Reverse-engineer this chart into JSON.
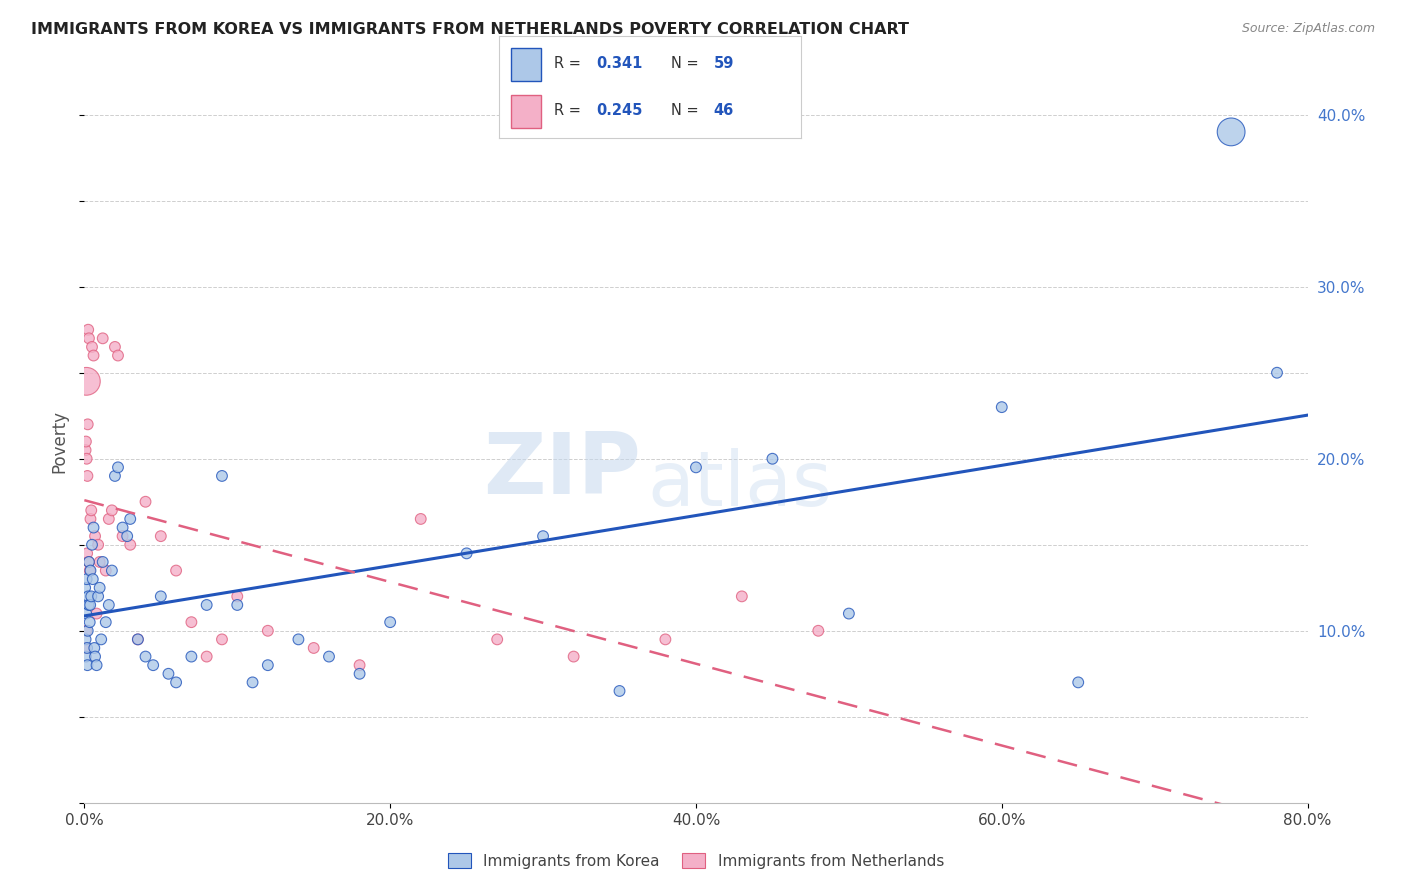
{
  "title": "IMMIGRANTS FROM KOREA VS IMMIGRANTS FROM NETHERLANDS POVERTY CORRELATION CHART",
  "source": "Source: ZipAtlas.com",
  "ylabel": "Poverty",
  "xlabel_ticks": [
    "0.0%",
    "20.0%",
    "40.0%",
    "60.0%",
    "80.0%"
  ],
  "xlabel_vals": [
    0,
    20,
    40,
    60,
    80
  ],
  "ylabel_ticks": [
    "10.0%",
    "20.0%",
    "30.0%",
    "40.0%"
  ],
  "ylabel_vals": [
    10,
    20,
    30,
    40
  ],
  "korea_R": 0.341,
  "korea_N": 59,
  "netherlands_R": 0.245,
  "netherlands_N": 46,
  "korea_color": "#adc8e8",
  "korea_line_color": "#2255bb",
  "netherlands_color": "#f4b0c8",
  "netherlands_line_color": "#e06080",
  "korea_x": [
    0.05,
    0.08,
    0.1,
    0.12,
    0.15,
    0.18,
    0.2,
    0.22,
    0.25,
    0.28,
    0.3,
    0.35,
    0.38,
    0.4,
    0.45,
    0.5,
    0.55,
    0.6,
    0.65,
    0.7,
    0.8,
    0.9,
    1.0,
    1.1,
    1.2,
    1.4,
    1.6,
    1.8,
    2.0,
    2.2,
    2.5,
    2.8,
    3.0,
    3.5,
    4.0,
    4.5,
    5.0,
    5.5,
    6.0,
    7.0,
    8.0,
    9.0,
    10.0,
    11.0,
    12.0,
    14.0,
    16.0,
    18.0,
    20.0,
    25.0,
    30.0,
    35.0,
    40.0,
    45.0,
    50.0,
    60.0,
    65.0,
    75.0,
    78.0
  ],
  "korea_y": [
    12.5,
    9.5,
    8.5,
    11.0,
    13.0,
    9.0,
    8.0,
    10.0,
    12.0,
    11.5,
    14.0,
    10.5,
    11.5,
    13.5,
    12.0,
    15.0,
    13.0,
    16.0,
    9.0,
    8.5,
    8.0,
    12.0,
    12.5,
    9.5,
    14.0,
    10.5,
    11.5,
    13.5,
    19.0,
    19.5,
    16.0,
    15.5,
    16.5,
    9.5,
    8.5,
    8.0,
    12.0,
    7.5,
    7.0,
    8.5,
    11.5,
    19.0,
    11.5,
    7.0,
    8.0,
    9.5,
    8.5,
    7.5,
    10.5,
    14.5,
    15.5,
    6.5,
    19.5,
    20.0,
    11.0,
    23.0,
    7.0,
    39.0,
    25.0
  ],
  "korea_sizes": [
    60,
    60,
    60,
    60,
    60,
    60,
    60,
    60,
    60,
    60,
    60,
    60,
    60,
    60,
    60,
    60,
    60,
    60,
    60,
    60,
    60,
    60,
    60,
    60,
    60,
    60,
    60,
    60,
    60,
    60,
    60,
    60,
    60,
    60,
    60,
    60,
    60,
    60,
    60,
    60,
    60,
    60,
    60,
    60,
    60,
    60,
    60,
    60,
    60,
    60,
    60,
    60,
    60,
    60,
    60,
    60,
    60,
    400,
    60
  ],
  "netherlands_x": [
    0.05,
    0.08,
    0.1,
    0.12,
    0.15,
    0.18,
    0.2,
    0.25,
    0.28,
    0.3,
    0.35,
    0.4,
    0.45,
    0.5,
    0.6,
    0.7,
    0.8,
    0.9,
    1.0,
    1.2,
    1.4,
    1.6,
    1.8,
    2.0,
    2.2,
    2.5,
    3.0,
    3.5,
    4.0,
    5.0,
    6.0,
    7.0,
    8.0,
    9.0,
    10.0,
    12.0,
    15.0,
    18.0,
    22.0,
    27.0,
    32.0,
    38.0,
    43.0,
    48.0,
    0.13,
    0.22
  ],
  "netherlands_y": [
    9.0,
    20.5,
    21.0,
    10.0,
    20.0,
    14.5,
    19.0,
    27.5,
    14.0,
    27.0,
    13.5,
    16.5,
    17.0,
    26.5,
    26.0,
    15.5,
    11.0,
    15.0,
    14.0,
    27.0,
    13.5,
    16.5,
    17.0,
    26.5,
    26.0,
    15.5,
    15.0,
    9.5,
    17.5,
    15.5,
    13.5,
    10.5,
    8.5,
    9.5,
    12.0,
    10.0,
    9.0,
    8.0,
    16.5,
    9.5,
    8.5,
    9.5,
    12.0,
    10.0,
    24.5,
    22.0
  ],
  "netherlands_sizes": [
    60,
    60,
    60,
    60,
    60,
    60,
    60,
    60,
    60,
    60,
    60,
    60,
    60,
    60,
    60,
    60,
    60,
    60,
    60,
    60,
    60,
    60,
    60,
    60,
    60,
    60,
    60,
    60,
    60,
    60,
    60,
    60,
    60,
    60,
    60,
    60,
    60,
    60,
    60,
    60,
    60,
    60,
    60,
    60,
    400,
    60
  ],
  "watermark_zip": "ZIP",
  "watermark_atlas": "atlas",
  "background_color": "#ffffff",
  "grid_color": "#bbbbbb",
  "legend_korea_text": "R =  0.341   N = 59",
  "legend_neth_text": "R =  0.245   N = 46"
}
